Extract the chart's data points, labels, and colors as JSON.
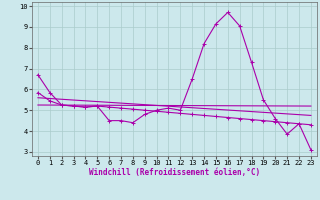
{
  "xlabel": "Windchill (Refroidissement éolien,°C)",
  "bg_color": "#cce8ec",
  "line_color": "#aa00aa",
  "grid_color": "#aacccc",
  "xlim": [
    -0.5,
    23.5
  ],
  "ylim": [
    2.8,
    10.2
  ],
  "yticks": [
    3,
    4,
    5,
    6,
    7,
    8,
    9,
    10
  ],
  "xticks": [
    0,
    1,
    2,
    3,
    4,
    5,
    6,
    7,
    8,
    9,
    10,
    11,
    12,
    13,
    14,
    15,
    16,
    17,
    18,
    19,
    20,
    21,
    22,
    23
  ],
  "series1_x": [
    0,
    1,
    2,
    3,
    4,
    5,
    6,
    7,
    8,
    9,
    10,
    11,
    12,
    13,
    14,
    15,
    16,
    17,
    18,
    19,
    20,
    21,
    22,
    23
  ],
  "series1_y": [
    6.7,
    5.85,
    5.25,
    5.2,
    5.15,
    5.2,
    4.5,
    4.5,
    4.4,
    4.8,
    5.0,
    5.1,
    5.0,
    6.5,
    8.2,
    9.15,
    9.7,
    9.05,
    7.3,
    5.5,
    4.6,
    3.85,
    4.35,
    3.1
  ],
  "series2_x": [
    0,
    1,
    2,
    3,
    4,
    5,
    6,
    7,
    8,
    9,
    10,
    11,
    12,
    13,
    14,
    15,
    16,
    17,
    18,
    19,
    20,
    21,
    22,
    23
  ],
  "series2_y": [
    5.85,
    5.45,
    5.25,
    5.2,
    5.15,
    5.2,
    5.15,
    5.1,
    5.05,
    5.0,
    4.95,
    4.9,
    4.85,
    4.8,
    4.75,
    4.7,
    4.65,
    4.6,
    4.55,
    4.5,
    4.45,
    4.4,
    4.35,
    4.3
  ],
  "series3_x": [
    0,
    23
  ],
  "series3_y": [
    5.6,
    4.75
  ],
  "series4_x": [
    0,
    23
  ],
  "series4_y": [
    5.25,
    5.2
  ]
}
